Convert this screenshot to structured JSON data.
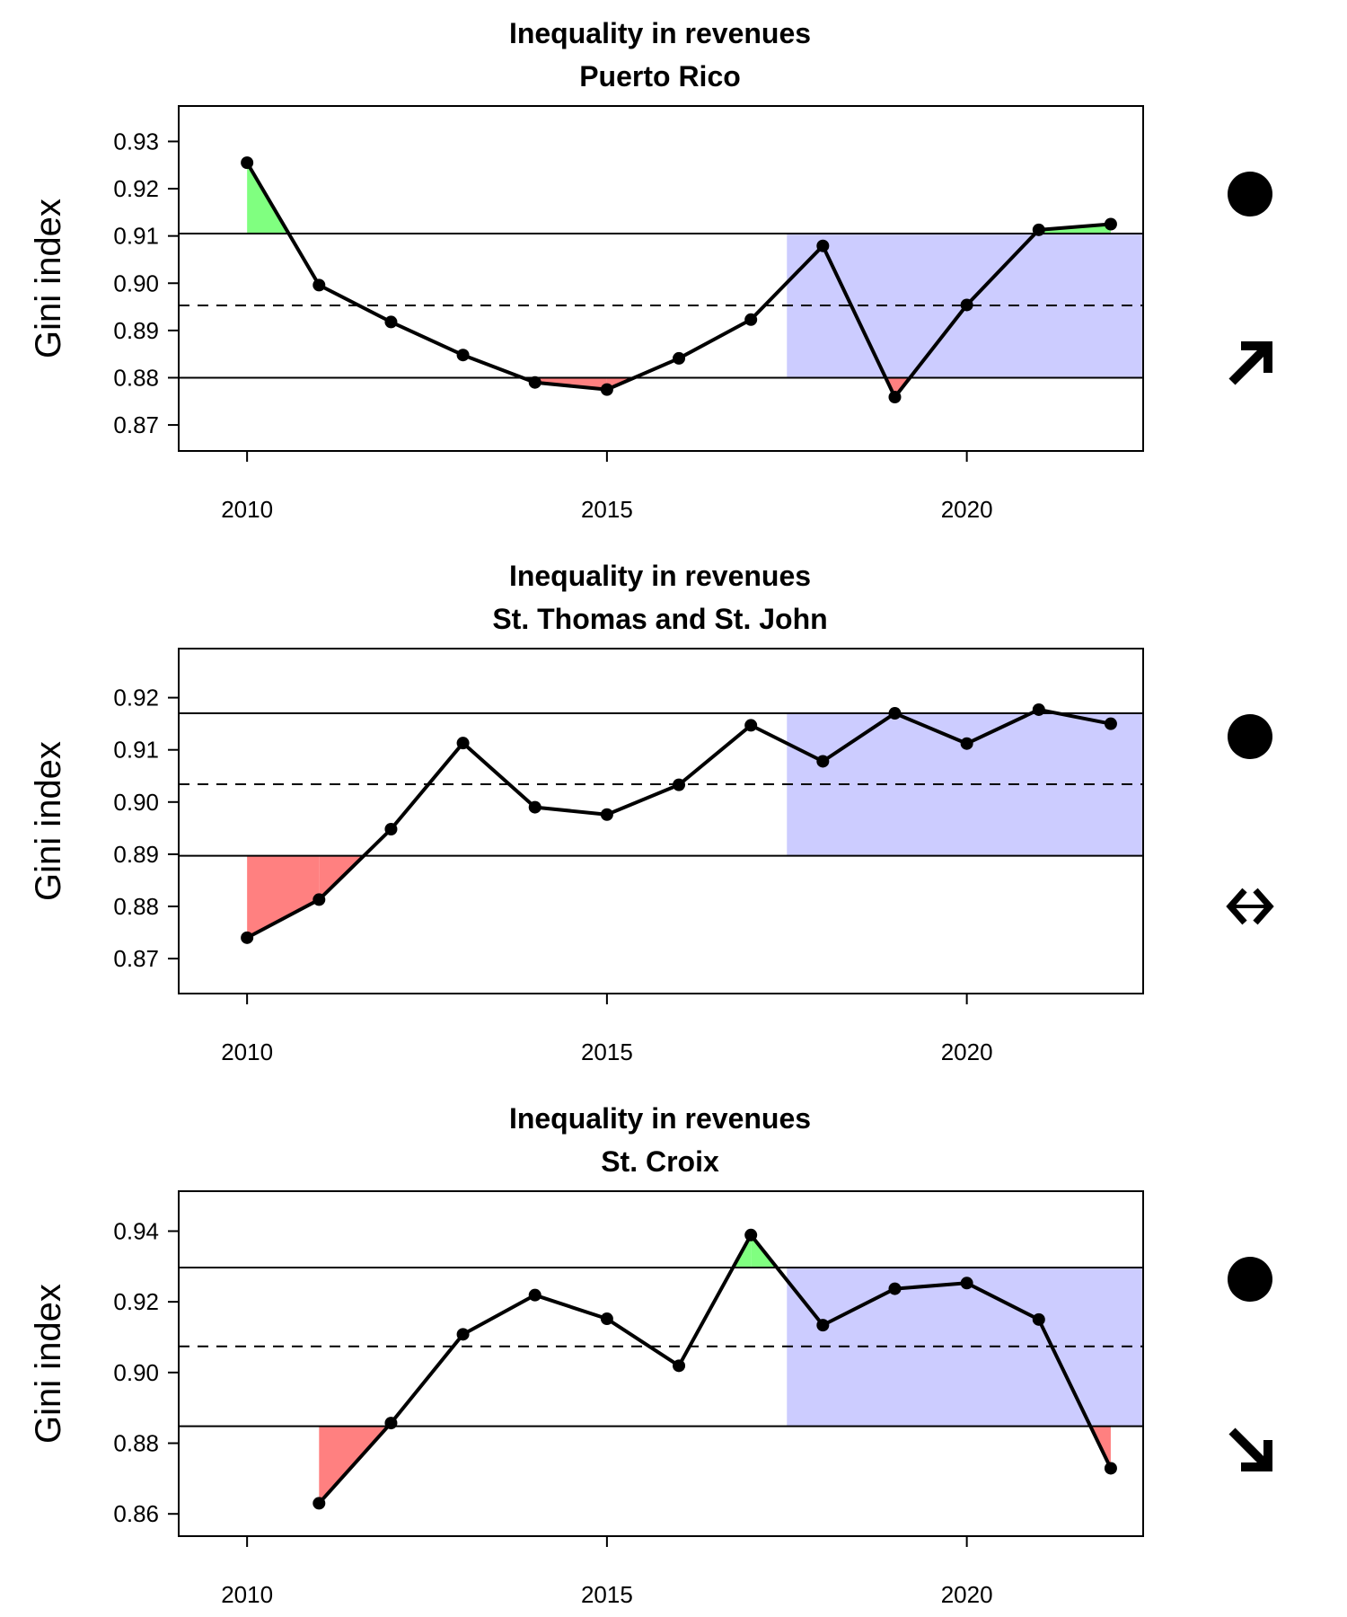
{
  "chart_data": [
    {
      "type": "line",
      "title": "Inequality in revenues",
      "subtitle": "Puerto Rico",
      "ylabel": "Gini index",
      "xlabel": "",
      "xlim": [
        2009.05,
        2022.45
      ],
      "ylim": [
        0.8645,
        0.9375
      ],
      "x_ticks": [
        2010,
        2015,
        2020
      ],
      "y_ticks": [
        0.87,
        0.88,
        0.89,
        0.9,
        0.91,
        0.92,
        0.93
      ],
      "upper": 0.9105,
      "mean": 0.8953,
      "lower": 0.88,
      "recent_start": 2017.5,
      "x": [
        2010,
        2011,
        2012,
        2013,
        2014,
        2015,
        2016,
        2017,
        2018,
        2019,
        2020,
        2021,
        2022
      ],
      "values": [
        0.9255,
        0.8996,
        0.8918,
        0.8848,
        0.879,
        0.8775,
        0.8841,
        0.8923,
        0.9079,
        0.8759,
        0.8954,
        0.9113,
        0.9125
      ],
      "trend_symbol": "arrow-up-right",
      "mean_symbol": "dot",
      "colors": {
        "above": "#80ff80",
        "below": "#ff8080",
        "recent": "#ccccff"
      }
    },
    {
      "type": "line",
      "title": "Inequality in revenues",
      "subtitle": "St. Thomas and St. John",
      "ylabel": "Gini index",
      "xlabel": "",
      "xlim": [
        2009.05,
        2022.45
      ],
      "ylim": [
        0.8633,
        0.9294
      ],
      "x_ticks": [
        2010,
        2015,
        2020
      ],
      "y_ticks": [
        0.87,
        0.88,
        0.89,
        0.9,
        0.91,
        0.92
      ],
      "upper": 0.917,
      "mean": 0.9034,
      "lower": 0.8897,
      "recent_start": 2017.5,
      "x": [
        2010,
        2011,
        2012,
        2013,
        2014,
        2015,
        2016,
        2017,
        2018,
        2019,
        2020,
        2021,
        2022
      ],
      "values": [
        0.874,
        0.8813,
        0.8948,
        0.9113,
        0.899,
        0.8976,
        0.9033,
        0.9147,
        0.9078,
        0.917,
        0.9112,
        0.9177,
        0.915
      ],
      "trend_symbol": "arrow-left-right",
      "mean_symbol": "dot",
      "colors": {
        "above": "#80ff80",
        "below": "#ff8080",
        "recent": "#ccccff"
      }
    },
    {
      "type": "line",
      "title": "Inequality in revenues",
      "subtitle": "St. Croix",
      "ylabel": "Gini index",
      "xlabel": "",
      "xlim": [
        2009.05,
        2022.45
      ],
      "ylim": [
        0.8537,
        0.9513
      ],
      "x_ticks": [
        2010,
        2015,
        2020
      ],
      "y_ticks": [
        0.86,
        0.88,
        0.9,
        0.92,
        0.94
      ],
      "upper": 0.9297,
      "mean": 0.9074,
      "lower": 0.8848,
      "recent_start": 2017.5,
      "x": [
        2011,
        2012,
        2013,
        2014,
        2015,
        2016,
        2017,
        2018,
        2019,
        2020,
        2021,
        2022
      ],
      "values": [
        0.863,
        0.8857,
        0.9108,
        0.9219,
        0.9152,
        0.9019,
        0.9389,
        0.9134,
        0.9237,
        0.9253,
        0.915,
        0.8729
      ],
      "trend_symbol": "arrow-down-right",
      "mean_symbol": "dot",
      "colors": {
        "above": "#80ff80",
        "below": "#ff8080",
        "recent": "#ccccff"
      }
    }
  ]
}
